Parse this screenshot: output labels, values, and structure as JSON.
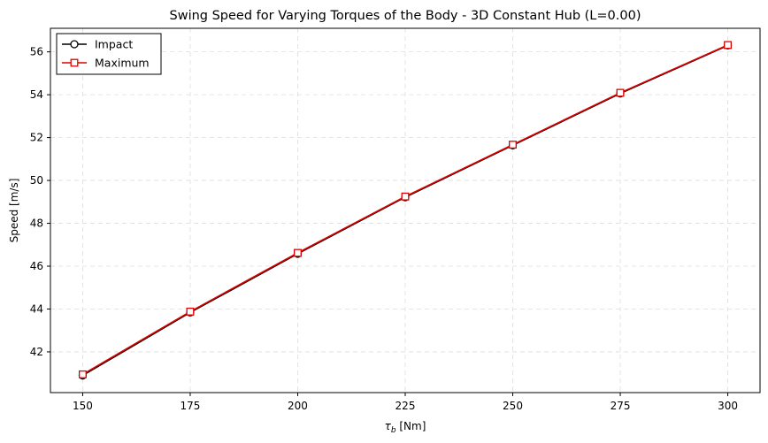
{
  "chart_data": {
    "type": "line",
    "title": "Swing Speed for Varying Torques of the Body - 3D Constant Hub (L=0.00)",
    "xlabel_symbol": "τ",
    "xlabel_sub": "b",
    "xlabel_unit": " [Nm]",
    "ylabel": "Speed [m/s]",
    "x": [
      150,
      175,
      200,
      225,
      250,
      275,
      300
    ],
    "xlim": [
      142.5,
      307.5
    ],
    "ylim": [
      40.1,
      57.1
    ],
    "xticks": [
      150,
      175,
      200,
      225,
      250,
      275,
      300
    ],
    "yticks": [
      42,
      44,
      46,
      48,
      50,
      52,
      54,
      56
    ],
    "grid": true,
    "legend_position": "top-left",
    "series": [
      {
        "name": "Impact",
        "marker": "circle",
        "color": "#000000",
        "values": [
          40.9,
          43.84,
          46.58,
          49.22,
          51.64,
          54.06,
          56.3
        ]
      },
      {
        "name": "Maximum",
        "marker": "square",
        "color": "#e00000",
        "values": [
          40.95,
          43.88,
          46.62,
          49.25,
          51.67,
          54.09,
          56.32
        ]
      }
    ]
  }
}
